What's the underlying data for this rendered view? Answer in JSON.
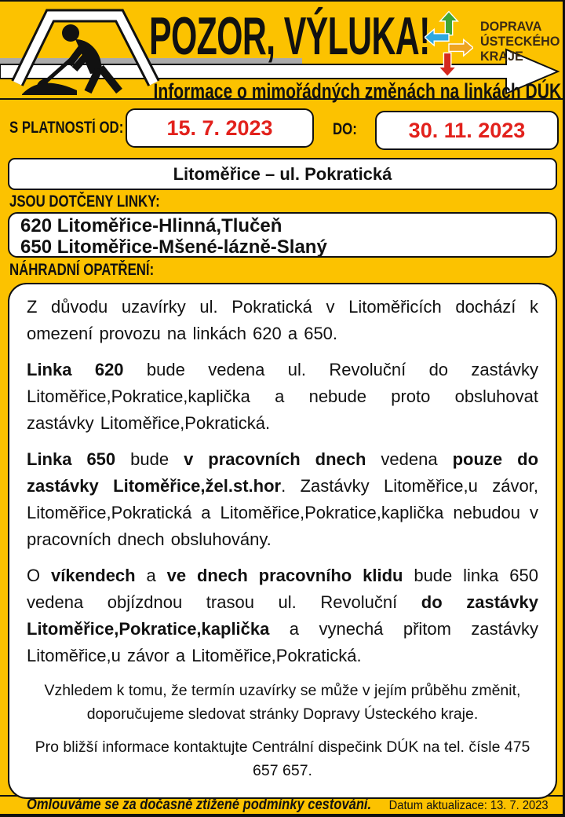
{
  "header": {
    "title": "POZOR, VÝLUKA!",
    "subtitle": "Informace o mimořádných změnách na linkách DÚK",
    "logo": {
      "line1": "DOPRAVA",
      "line2": "ÚSTECKÉHO",
      "line3": "KRAJE"
    },
    "icons": {
      "roadworks": "roadworks-digger-warning-sign",
      "banner_arrow": "right-pointing-arrow-banner",
      "logo_arrows": "four-direction-transit-arrows"
    }
  },
  "validity": {
    "from_label": "S PLATNOSTÍ OD:",
    "from_date": "15. 7. 2023",
    "to_label": "DO:",
    "to_date": "30. 11. 2023"
  },
  "location": {
    "title": "Litoměřice – ul. Pokratická"
  },
  "affected": {
    "label": "JSOU DOTČENY LINKY:",
    "lines": [
      "620 Litoměřice-Hlinná,Tlučeň",
      "650 Litoměřice-Mšené-lázně-Slaný"
    ]
  },
  "measures": {
    "label": "NÁHRADNÍ OPATŘENÍ:",
    "paragraphs": [
      {
        "align": "justify",
        "runs": [
          {
            "text": "Z důvodu uzavírky ul. Pokratická v Litoměřicích dochází k omezení provozu na linkách 620 a 650.",
            "bold": false
          }
        ]
      },
      {
        "align": "justify",
        "runs": [
          {
            "text": "Linka 620",
            "bold": true
          },
          {
            "text": " bude vedena ul. Revoluční do zastávky Litoměřice,Pokratice,kaplička a nebude proto obsluhovat zastávky Litoměřice,Pokratická.",
            "bold": false
          }
        ]
      },
      {
        "align": "justify",
        "runs": [
          {
            "text": "Linka 650",
            "bold": true
          },
          {
            "text": " bude ",
            "bold": false
          },
          {
            "text": "v pracovních dnech",
            "bold": true
          },
          {
            "text": " vedena ",
            "bold": false
          },
          {
            "text": "pouze do zastávky Litoměřice,žel.st.hor",
            "bold": true
          },
          {
            "text": ". Zastávky Litoměřice,u závor, Litoměřice,Pokratická a Litoměřice,Pokratice,kaplička nebudou v pracovních dnech obsluhovány.",
            "bold": false
          }
        ]
      },
      {
        "align": "justify",
        "runs": [
          {
            "text": "O ",
            "bold": false
          },
          {
            "text": "víkendech",
            "bold": true
          },
          {
            "text": " a ",
            "bold": false
          },
          {
            "text": "ve dnech pracovního klidu",
            "bold": true
          },
          {
            "text": " bude linka 650 vedena objízdnou trasou ul. Revoluční ",
            "bold": false
          },
          {
            "text": "do zastávky Litoměřice,Pokratice,kaplička",
            "bold": true
          },
          {
            "text": " a vynechá přitom zastávky Litoměřice,u závor a Litoměřice,Pokratická.",
            "bold": false
          }
        ]
      },
      {
        "align": "center",
        "size": "small",
        "runs": [
          {
            "text": "Vzhledem k tomu, že termín uzavírky se může v jejím průběhu změnit, doporučujeme sledovat stránky Dopravy Ústeckého kraje.",
            "bold": false
          }
        ]
      },
      {
        "align": "center",
        "size": "small",
        "runs": [
          {
            "text": "Pro bližší informace kontaktujte Centrální dispečink DÚK na tel. čísle 475 657 657.",
            "bold": false
          }
        ]
      }
    ]
  },
  "footer": {
    "apology": "Omlouváme se za dočasně ztížené podmínky cestování.",
    "updated": "Datum aktualizace: 13. 7. 2023"
  },
  "colors": {
    "background": "#FCC200",
    "date_red": "#E2211C",
    "line_black": "#111111",
    "road_gray": "#ABABAB",
    "logo_green": "#3FA535",
    "logo_blue": "#2FA8E0",
    "logo_amber": "#EFA420",
    "logo_red": "#D5281E",
    "logo_text": "#3A2A15"
  }
}
